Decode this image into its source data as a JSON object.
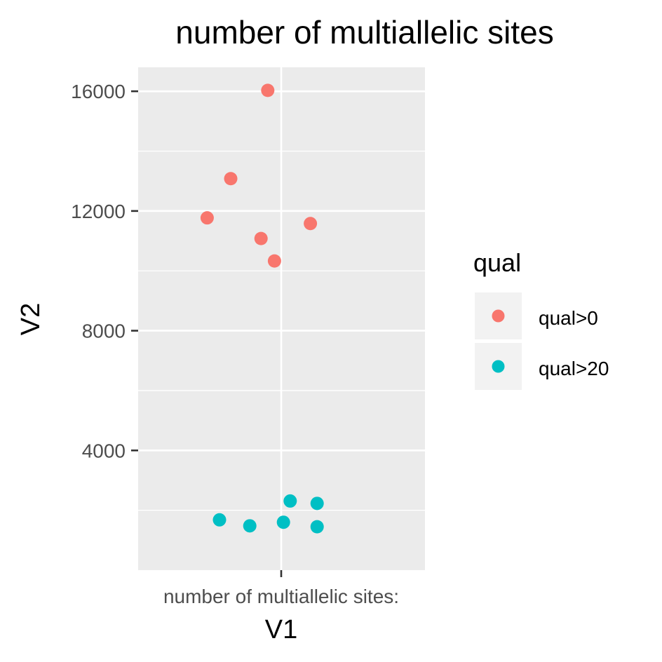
{
  "chart_data": {
    "type": "scatter",
    "title": "number of multiallelic sites",
    "xlabel": "V1",
    "ylabel": "V2",
    "x_category": "number of multiallelic sites:",
    "ylim": [
      0,
      16800
    ],
    "yticks": [
      4000,
      8000,
      12000,
      16000
    ],
    "grid": true,
    "legend": {
      "title": "qual",
      "position": "right",
      "entries": [
        {
          "label": "qual>0",
          "color": "#F8766D"
        },
        {
          "label": "qual>20",
          "color": "#00BFC4"
        }
      ]
    },
    "series": [
      {
        "name": "qual>0",
        "color": "#F8766D",
        "points": [
          {
            "jitter": -0.66,
            "y": 11770
          },
          {
            "jitter": -0.45,
            "y": 13080
          },
          {
            "jitter": -0.12,
            "y": 16030
          },
          {
            "jitter": -0.18,
            "y": 11080
          },
          {
            "jitter": -0.06,
            "y": 10330
          },
          {
            "jitter": 0.26,
            "y": 11580
          }
        ]
      },
      {
        "name": "qual>20",
        "color": "#00BFC4",
        "points": [
          {
            "jitter": -0.55,
            "y": 1680
          },
          {
            "jitter": -0.28,
            "y": 1480
          },
          {
            "jitter": 0.02,
            "y": 1600
          },
          {
            "jitter": 0.08,
            "y": 2310
          },
          {
            "jitter": 0.32,
            "y": 2230
          },
          {
            "jitter": 0.32,
            "y": 1450
          }
        ]
      }
    ]
  }
}
